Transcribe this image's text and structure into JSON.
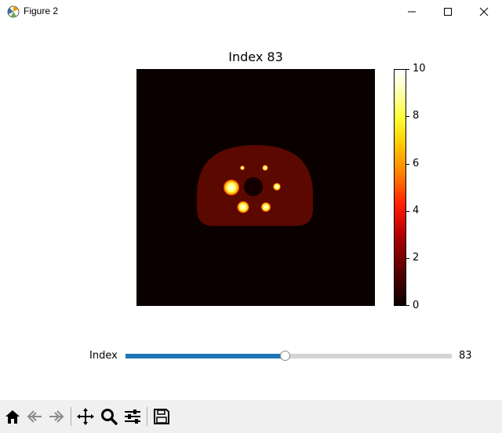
{
  "window": {
    "title": "Figure 2",
    "icons": {
      "app": "matplotlib-figure-icon",
      "minimize": "minimize-icon",
      "maximize": "maximize-icon",
      "close": "close-icon"
    }
  },
  "plot": {
    "title": "Index 83",
    "colormap": "hot",
    "colorbar": {
      "ticks": [
        "10",
        "8",
        "6",
        "4",
        "2",
        "0"
      ],
      "range": [
        0,
        10
      ]
    }
  },
  "slider": {
    "label": "Index",
    "value_text": "83",
    "fraction": 0.49
  },
  "toolbar": {
    "buttons": [
      "home-icon",
      "back-icon",
      "forward-icon",
      "pan-icon",
      "zoom-icon",
      "configure-subplots-icon",
      "save-icon"
    ]
  }
}
